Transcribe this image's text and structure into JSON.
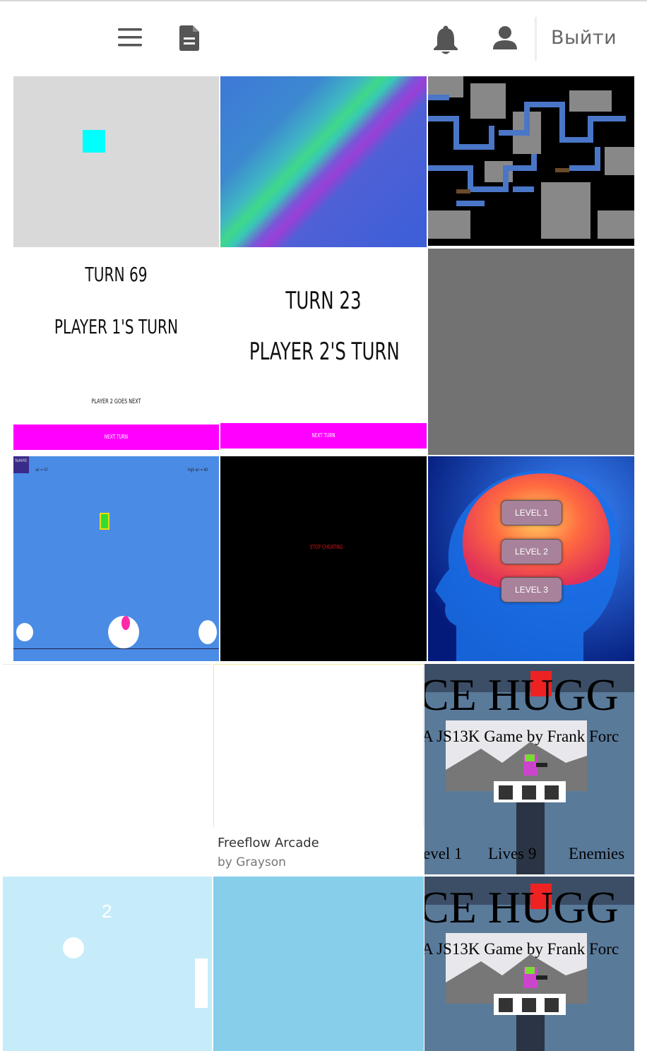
{
  "header": {
    "menu_icon": "hamburger-icon",
    "doc_icon": "document-icon",
    "bell_icon": "bell-icon",
    "user_icon": "user-icon",
    "logout_label": "Выйти"
  },
  "tiles": {
    "turn69": {
      "turn": "TURN 69",
      "player": "PLAYER 1'S TURN",
      "next": "PLAYER 2 GOES NEXT",
      "button": "NEXT TURN"
    },
    "turn23": {
      "turn": "TURN 23",
      "player": "PLAYER 2'S TURN",
      "button": "NEXT TURN"
    },
    "jumper": {
      "badge": "NAME",
      "air": "air = 47",
      "high": "high air = 60"
    },
    "stop": {
      "text": "STOP CHEATING"
    },
    "brain": {
      "levels": [
        "LEVEL 1",
        "LEVEL 2",
        "LEVEL 3"
      ]
    },
    "freeflow": {
      "title": "Freeflow Arcade",
      "author": "by Grayson"
    },
    "hugger": {
      "title": "CE HUGG",
      "subtitle": "A JS13K Game by Frank Forc",
      "level": "evel 1",
      "lives": "Lives 9",
      "enemies": "Enemies"
    },
    "pong": {
      "score": "2"
    }
  },
  "colors": {
    "magenta": "#ff00ff",
    "cyan": "#00ffff",
    "sky": "#87ceeb",
    "blue": "#4a8be6"
  }
}
